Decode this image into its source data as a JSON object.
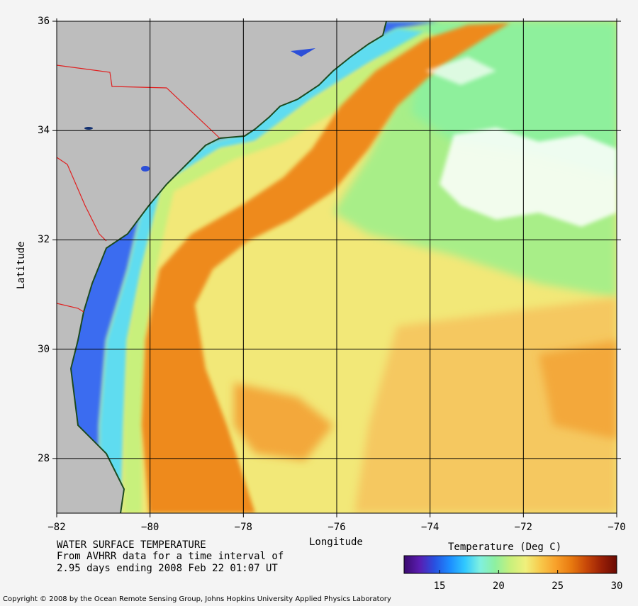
{
  "title": "WATER SURFACE TEMPERATURE",
  "subtitle_line1": "From AVHRR data for a time interval of",
  "subtitle_line2": "2.95 days ending 2008 Feb 22 01:07 UT",
  "x_axis": {
    "label": "Longitude",
    "ticks": [
      {
        "value": -82,
        "label": "−82"
      },
      {
        "value": -80,
        "label": "−80"
      },
      {
        "value": -78,
        "label": "−78"
      },
      {
        "value": -76,
        "label": "−76"
      },
      {
        "value": -74,
        "label": "−74"
      },
      {
        "value": -72,
        "label": "−72"
      },
      {
        "value": -70,
        "label": "−70"
      }
    ],
    "range": [
      -82,
      -70
    ]
  },
  "y_axis": {
    "label": "Latitude",
    "ticks": [
      {
        "value": 36,
        "label": "36"
      },
      {
        "value": 34,
        "label": "34"
      },
      {
        "value": 32,
        "label": "32"
      },
      {
        "value": 30,
        "label": "30"
      },
      {
        "value": 28,
        "label": "28"
      }
    ],
    "range": [
      27,
      36
    ]
  },
  "colorbar": {
    "title": "Temperature (Deg C)",
    "range": [
      12,
      30
    ],
    "ticks": [
      {
        "value": 15,
        "label": "15"
      },
      {
        "value": 20,
        "label": "20"
      },
      {
        "value": 25,
        "label": "25"
      },
      {
        "value": 30,
        "label": "30"
      }
    ],
    "colors": [
      "#3a0a6e",
      "#5a1cb0",
      "#2850e0",
      "#1c8cff",
      "#30c8ff",
      "#7ff0e0",
      "#8ef0a0",
      "#c8f07c",
      "#f0f07c",
      "#f8c84a",
      "#f8a02a",
      "#e87a10",
      "#c84808",
      "#9a2006",
      "#6a0a04"
    ]
  },
  "legend_colors": {
    "land": "#bdbdbd",
    "cloud": "#ffffff",
    "state_border": "#e02020",
    "grid": "#000000",
    "gulf_stream": "#ee8a1a",
    "open_ocean": "#f2e878",
    "coastal_cold": "#3a6cf0"
  },
  "copyright": "Copyright © 2008 by the Ocean Remote Sensing Group, Johns Hopkins University Applied Physics Laboratory"
}
